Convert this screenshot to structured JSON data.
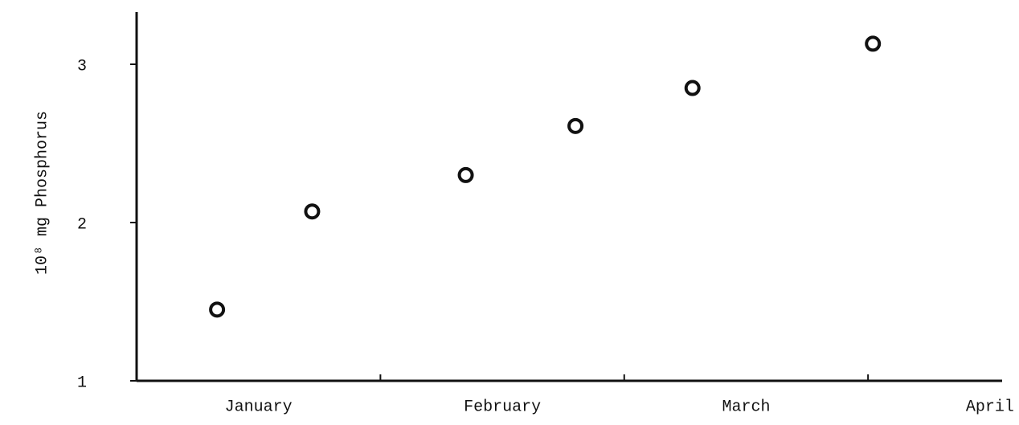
{
  "chart_data": {
    "type": "scatter",
    "y_label": "10⁸ mg Phosphorus",
    "categories": [
      "January",
      "February",
      "March",
      "April"
    ],
    "x": [
      0.33,
      0.72,
      1.35,
      1.8,
      2.28,
      3.02
    ],
    "values": [
      1.45,
      2.07,
      2.3,
      2.61,
      2.85,
      3.13
    ],
    "color": "#111111",
    "xlim": [
      0,
      3.55
    ],
    "xticks": [
      1,
      2,
      3
    ],
    "ylim": [
      1,
      3.33
    ],
    "yticks": [
      1,
      2,
      3
    ]
  }
}
